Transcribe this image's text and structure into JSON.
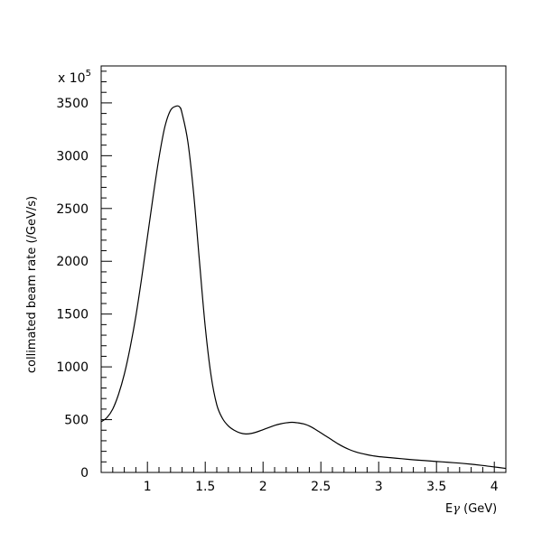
{
  "chart_data": {
    "type": "line",
    "title": "",
    "xlabel_main": "E",
    "xlabel_symbol": "γ",
    "xlabel_unit": " (GeV)",
    "ylabel": "collimated beam rate (/GeV/s)",
    "y_multiplier_prefix": "x 10",
    "y_multiplier_exp": "5",
    "xlim": [
      0.6,
      4.1
    ],
    "ylim": [
      0,
      3850
    ],
    "x_major_ticks": [
      1,
      1.5,
      2,
      2.5,
      3,
      3.5,
      4
    ],
    "x_tick_labels": [
      "1",
      "1.5",
      "2",
      "2.5",
      "3",
      "3.5",
      "4"
    ],
    "y_major_ticks": [
      0,
      500,
      1000,
      1500,
      2000,
      2500,
      3000,
      3500
    ],
    "y_tick_labels": [
      "0",
      "500",
      "1000",
      "1500",
      "2000",
      "2500",
      "3000",
      "3500"
    ],
    "grid": false,
    "series": [
      {
        "x": [
          0.6,
          0.65,
          0.7,
          0.75,
          0.8,
          0.85,
          0.9,
          0.95,
          1.0,
          1.05,
          1.1,
          1.15,
          1.2,
          1.25,
          1.28,
          1.3,
          1.35,
          1.4,
          1.45,
          1.5,
          1.55,
          1.6,
          1.65,
          1.7,
          1.75,
          1.8,
          1.85,
          1.9,
          1.95,
          2.0,
          2.05,
          2.1,
          2.15,
          2.2,
          2.25,
          2.3,
          2.35,
          2.4,
          2.45,
          2.5,
          2.55,
          2.6,
          2.65,
          2.7,
          2.75,
          2.8,
          2.85,
          2.9,
          2.95,
          3.0,
          3.1,
          3.2,
          3.3,
          3.4,
          3.5,
          3.6,
          3.7,
          3.8,
          3.9,
          4.0,
          4.1
        ],
        "y": [
          480,
          520,
          600,
          740,
          930,
          1180,
          1480,
          1840,
          2230,
          2620,
          2980,
          3270,
          3430,
          3470,
          3460,
          3400,
          3130,
          2640,
          2000,
          1380,
          920,
          640,
          510,
          440,
          400,
          375,
          365,
          370,
          385,
          405,
          425,
          445,
          460,
          470,
          475,
          470,
          460,
          440,
          410,
          375,
          340,
          305,
          270,
          240,
          215,
          195,
          180,
          168,
          158,
          150,
          140,
          130,
          120,
          112,
          104,
          96,
          88,
          78,
          66,
          52,
          38
        ]
      }
    ]
  }
}
